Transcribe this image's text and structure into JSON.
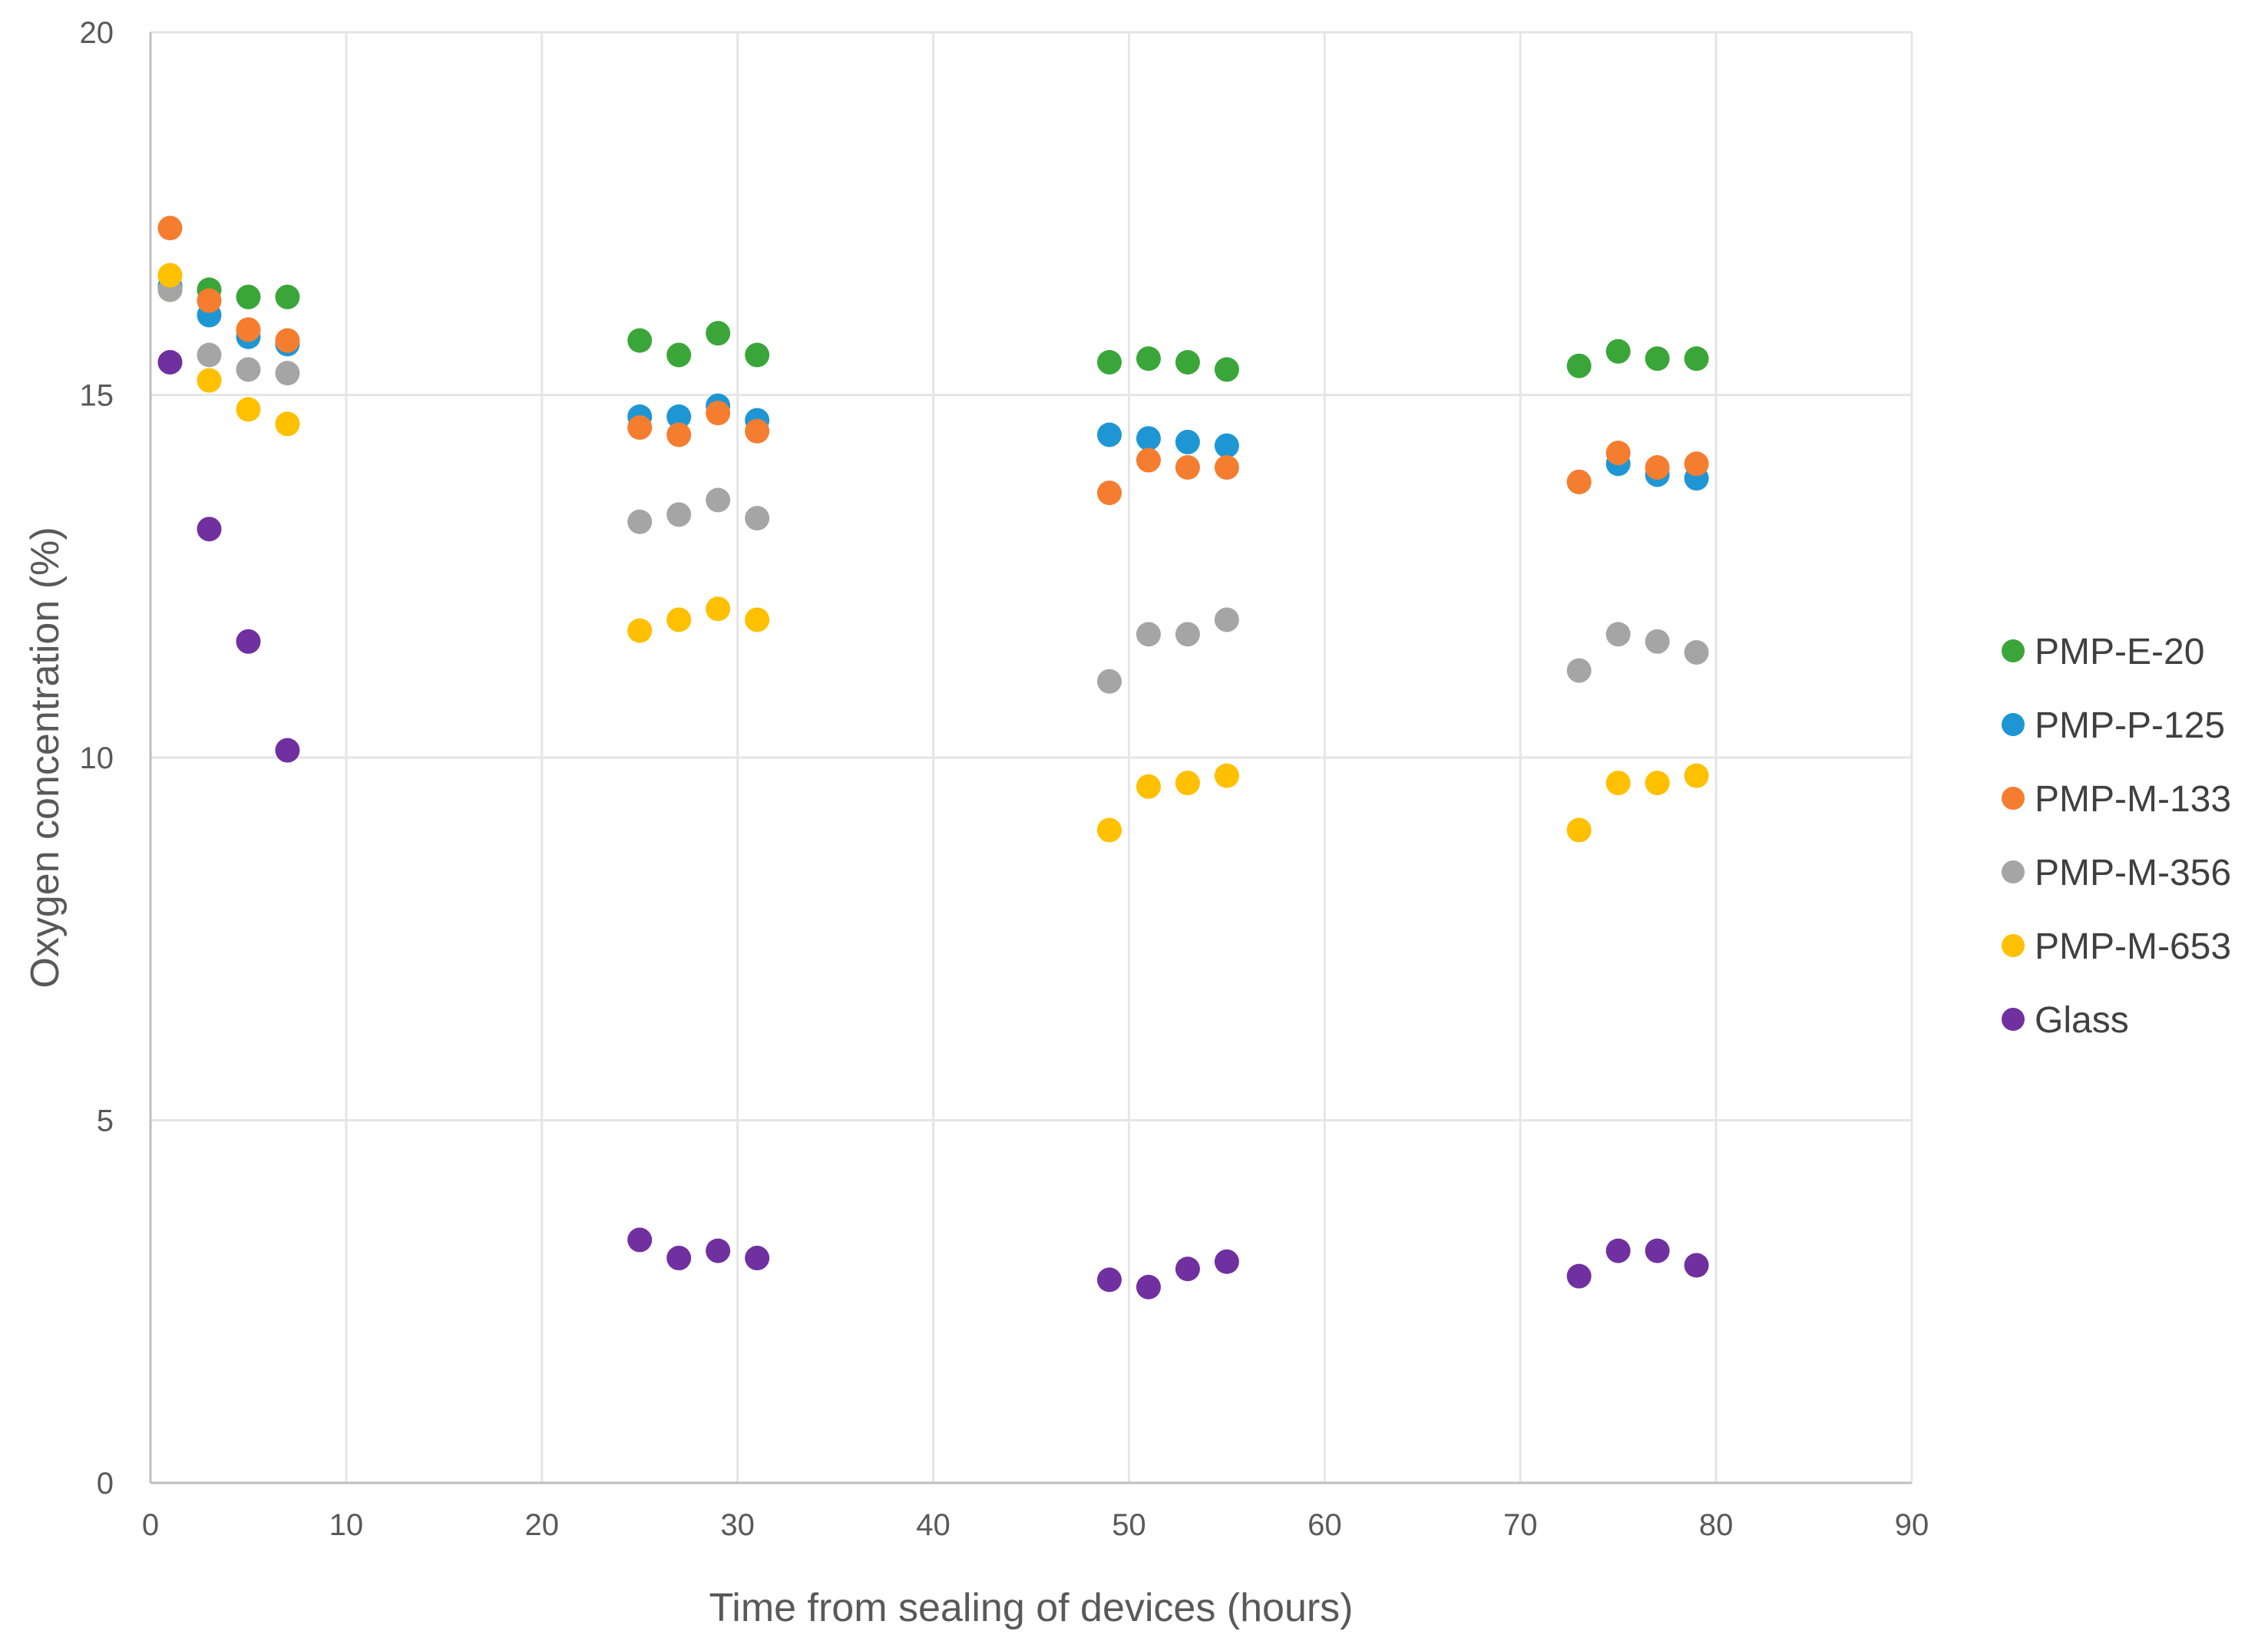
{
  "chart_data": {
    "type": "scatter",
    "title": "",
    "xlabel": "Time from sealing of devices (hours)",
    "ylabel": "Oxygen concentration (%)",
    "xlim": [
      0,
      90
    ],
    "ylim": [
      0,
      20
    ],
    "x_ticks": [
      "0",
      "10",
      "20",
      "30",
      "40",
      "50",
      "60",
      "70",
      "80",
      "90"
    ],
    "y_ticks": [
      "0",
      "5",
      "10",
      "15",
      "20"
    ],
    "grid": true,
    "legend_position": "right",
    "series": [
      {
        "name": "PMP-E-20",
        "color": "#3aa63a",
        "points": [
          [
            1,
            16.45
          ],
          [
            3,
            16.45
          ],
          [
            5,
            16.35
          ],
          [
            7,
            16.35
          ],
          [
            25,
            15.75
          ],
          [
            27,
            15.55
          ],
          [
            29,
            15.85
          ],
          [
            31,
            15.55
          ],
          [
            49,
            15.45
          ],
          [
            51,
            15.5
          ],
          [
            53,
            15.45
          ],
          [
            55,
            15.35
          ],
          [
            73,
            15.4
          ],
          [
            75,
            15.6
          ],
          [
            77,
            15.5
          ],
          [
            79,
            15.5
          ]
        ]
      },
      {
        "name": "PMP-P-125",
        "color": "#1f96d4",
        "points": [
          [
            1,
            16.5
          ],
          [
            3,
            16.1
          ],
          [
            5,
            15.8
          ],
          [
            7,
            15.7
          ],
          [
            25,
            14.7
          ],
          [
            27,
            14.7
          ],
          [
            29,
            14.85
          ],
          [
            31,
            14.65
          ],
          [
            49,
            14.45
          ],
          [
            51,
            14.4
          ],
          [
            53,
            14.35
          ],
          [
            55,
            14.3
          ],
          [
            73,
            13.8
          ],
          [
            75,
            14.05
          ],
          [
            77,
            13.9
          ],
          [
            79,
            13.85
          ]
        ]
      },
      {
        "name": "PMP-M-133",
        "color": "#f47d30",
        "points": [
          [
            1,
            17.3
          ],
          [
            3,
            16.3
          ],
          [
            5,
            15.9
          ],
          [
            7,
            15.75
          ],
          [
            25,
            14.55
          ],
          [
            27,
            14.45
          ],
          [
            29,
            14.75
          ],
          [
            31,
            14.5
          ],
          [
            49,
            13.65
          ],
          [
            51,
            14.1
          ],
          [
            53,
            14.0
          ],
          [
            55,
            14.0
          ],
          [
            73,
            13.8
          ],
          [
            75,
            14.2
          ],
          [
            77,
            14.0
          ],
          [
            79,
            14.05
          ]
        ]
      },
      {
        "name": "PMP-M-356",
        "color": "#a5a5a5",
        "points": [
          [
            1,
            16.45
          ],
          [
            3,
            15.55
          ],
          [
            5,
            15.35
          ],
          [
            7,
            15.3
          ],
          [
            25,
            13.25
          ],
          [
            27,
            13.35
          ],
          [
            29,
            13.55
          ],
          [
            31,
            13.3
          ],
          [
            49,
            11.05
          ],
          [
            51,
            11.7
          ],
          [
            53,
            11.7
          ],
          [
            55,
            11.9
          ],
          [
            73,
            11.2
          ],
          [
            75,
            11.7
          ],
          [
            77,
            11.6
          ],
          [
            79,
            11.45
          ]
        ]
      },
      {
        "name": "PMP-M-653",
        "color": "#ffc000",
        "points": [
          [
            1,
            16.65
          ],
          [
            3,
            15.2
          ],
          [
            5,
            14.8
          ],
          [
            7,
            14.6
          ],
          [
            25,
            11.75
          ],
          [
            27,
            11.9
          ],
          [
            29,
            12.05
          ],
          [
            31,
            11.9
          ],
          [
            49,
            9.0
          ],
          [
            51,
            9.6
          ],
          [
            53,
            9.65
          ],
          [
            55,
            9.75
          ],
          [
            73,
            9.0
          ],
          [
            75,
            9.65
          ],
          [
            77,
            9.65
          ],
          [
            79,
            9.75
          ]
        ]
      },
      {
        "name": "Glass",
        "color": "#7030a0",
        "points": [
          [
            1,
            15.45
          ],
          [
            3,
            13.15
          ],
          [
            5,
            11.6
          ],
          [
            7,
            10.1
          ],
          [
            25,
            3.35
          ],
          [
            27,
            3.1
          ],
          [
            29,
            3.2
          ],
          [
            31,
            3.1
          ],
          [
            49,
            2.8
          ],
          [
            51,
            2.7
          ],
          [
            53,
            2.95
          ],
          [
            55,
            3.05
          ],
          [
            73,
            2.85
          ],
          [
            75,
            3.2
          ],
          [
            77,
            3.2
          ],
          [
            79,
            3.0
          ]
        ]
      }
    ]
  }
}
